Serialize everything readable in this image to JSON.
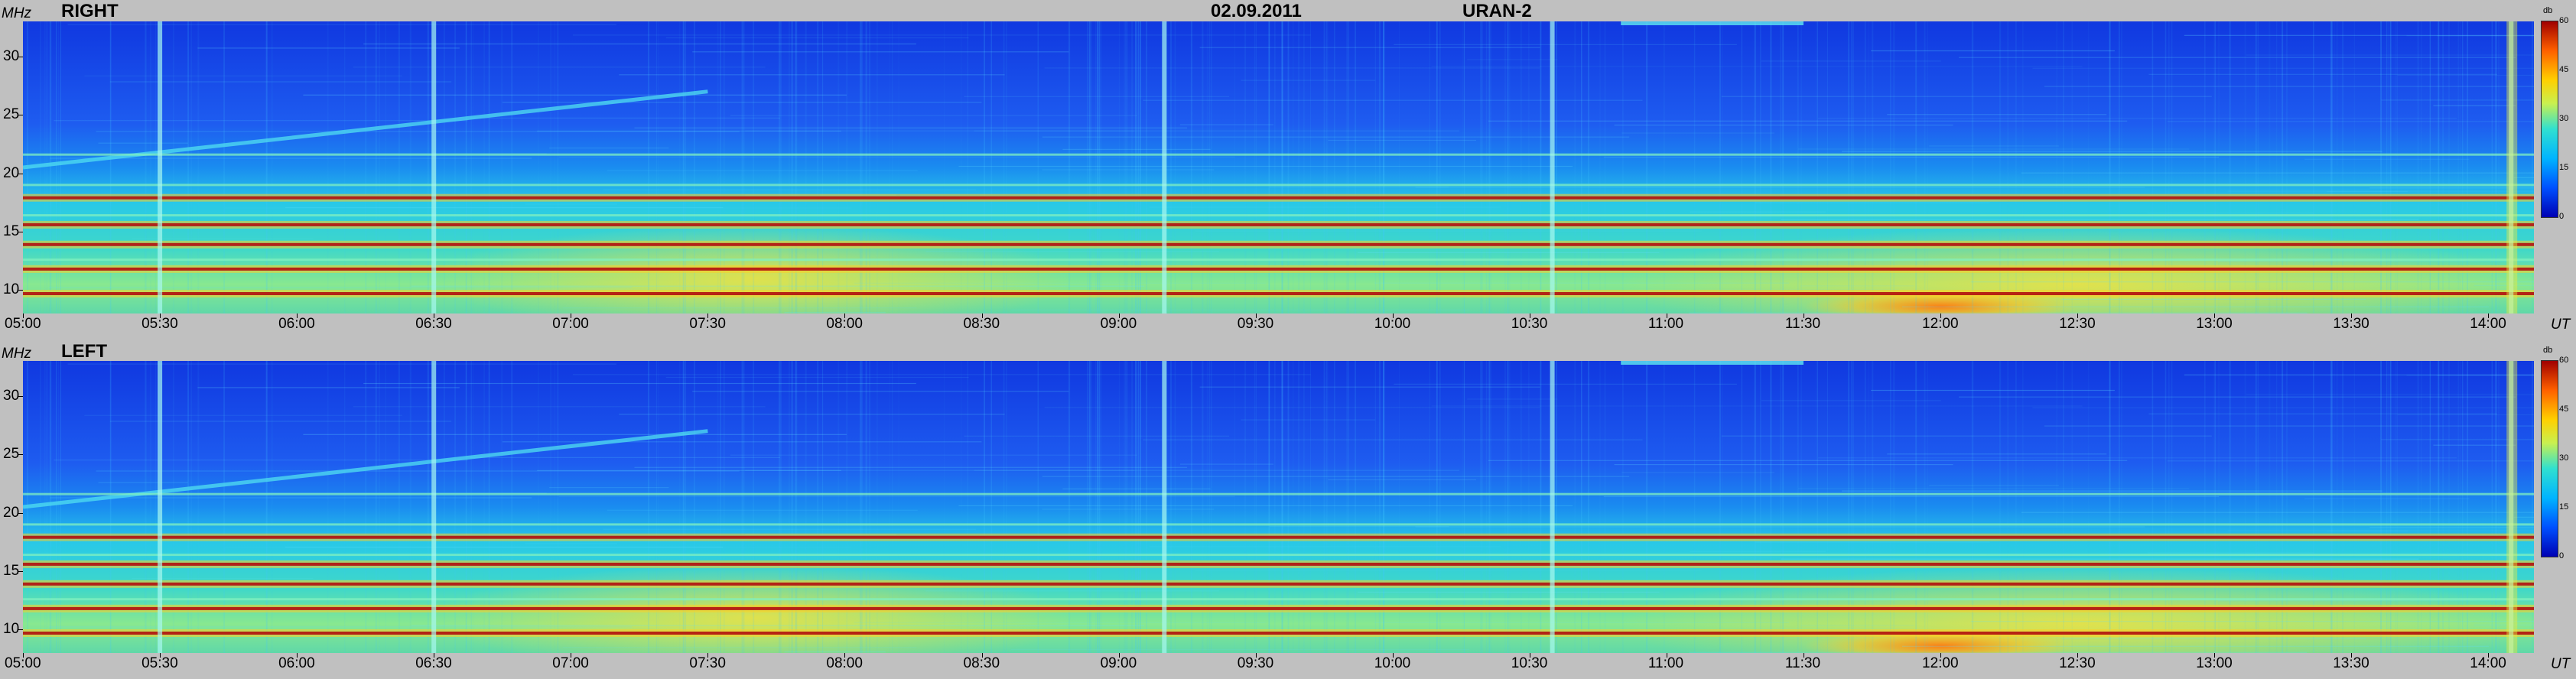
{
  "header": {
    "date": "02.09.2011",
    "instrument": "URAN-2"
  },
  "chart_data": [
    {
      "type": "heatmap",
      "title": "RIGHT",
      "ylabel": "MHz",
      "xlabel": "UT",
      "x_tick_labels": [
        "05:00",
        "05:30",
        "06:00",
        "06:30",
        "07:00",
        "07:30",
        "08:00",
        "08:30",
        "09:00",
        "09:30",
        "10:00",
        "10:30",
        "11:00",
        "11:30",
        "12:00",
        "12:30",
        "13:00",
        "13:30",
        "14:00"
      ],
      "y_tick_values": [
        10,
        15,
        20,
        25,
        30
      ],
      "ylim": [
        8,
        33
      ],
      "xlim": [
        "05:00",
        "14:10"
      ],
      "colorbar": {
        "label": "db",
        "ticks": [
          0,
          15,
          30,
          45,
          60
        ],
        "range": [
          0,
          60
        ]
      },
      "features": {
        "strong_bands_mhz": [
          9.7,
          11.8,
          13.9,
          15.6,
          17.9
        ],
        "moderate_bands_mhz": [
          12.6,
          16.4,
          19.0,
          21.6
        ],
        "drifting_burst": {
          "start_time": "05:00",
          "end_time": "07:30",
          "start_mhz": 20.5,
          "end_mhz": 27.0
        },
        "spike_times": [
          "06:30",
          "05:30",
          "09:10",
          "10:35",
          "14:05"
        ],
        "high_intensity_region": {
          "time_from": "11:45",
          "time_to": "12:15",
          "mhz_from": 8,
          "mhz_to": 10
        }
      }
    },
    {
      "type": "heatmap",
      "title": "LEFT",
      "ylabel": "MHz",
      "xlabel": "UT",
      "x_tick_labels": [
        "05:00",
        "05:30",
        "06:00",
        "06:30",
        "07:00",
        "07:30",
        "08:00",
        "08:30",
        "09:00",
        "09:30",
        "10:00",
        "10:30",
        "11:00",
        "11:30",
        "12:00",
        "12:30",
        "13:00",
        "13:30",
        "14:00"
      ],
      "y_tick_values": [
        10,
        15,
        20,
        25,
        30
      ],
      "ylim": [
        8,
        33
      ],
      "xlim": [
        "05:00",
        "14:10"
      ],
      "colorbar": {
        "label": "db",
        "ticks": [
          0,
          15,
          30,
          45,
          60
        ],
        "range": [
          0,
          60
        ]
      },
      "features": {
        "strong_bands_mhz": [
          9.7,
          11.8,
          13.9,
          15.6,
          17.9
        ],
        "moderate_bands_mhz": [
          12.6,
          16.4,
          19.0,
          21.6
        ],
        "drifting_burst": {
          "start_time": "05:00",
          "end_time": "07:30",
          "start_mhz": 20.5,
          "end_mhz": 27.0
        },
        "spike_times": [
          "06:30",
          "05:30",
          "09:10",
          "10:35",
          "14:05"
        ],
        "high_intensity_region": {
          "time_from": "11:45",
          "time_to": "12:15",
          "mhz_from": 8,
          "mhz_to": 10
        }
      }
    }
  ]
}
